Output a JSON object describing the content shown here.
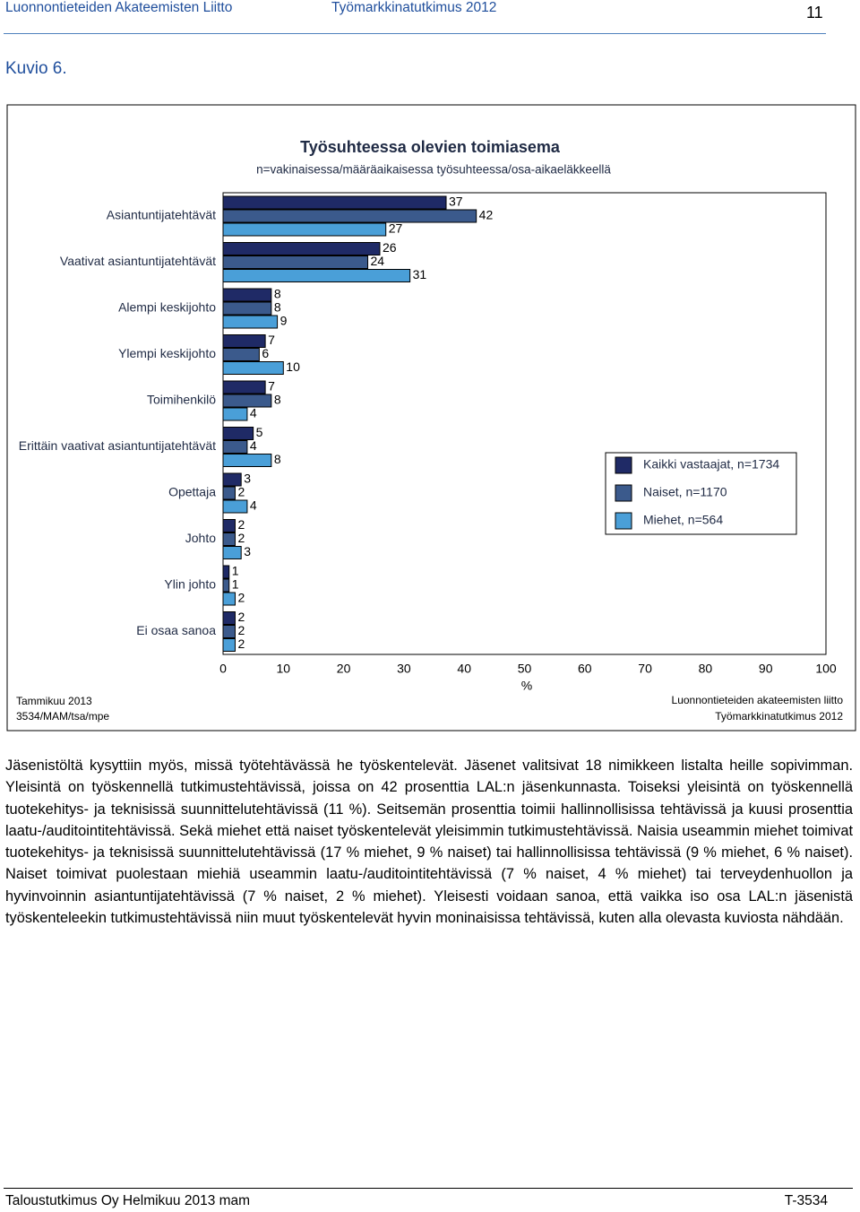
{
  "header": {
    "org": "Luonnontieteiden Akateemisten Liitto",
    "study": "Työmarkkinatutkimus 2012",
    "page": "11"
  },
  "figure_label": "Kuvio 6.",
  "chart_data": {
    "type": "bar",
    "orientation": "horizontal",
    "title": "Työsuhteessa olevien toimiasema",
    "subtitle": "n=vakinaisessa/määräaikaisessa työsuhteessa/osa-aikaeläkkeellä",
    "x_label": "%",
    "categories": [
      "Asiantuntijatehtävät",
      "Vaativat asiantuntijatehtävät",
      "Alempi keskijohto",
      "Ylempi keskijohto",
      "Toimihenkilö",
      "Erittäin vaativat asiantuntijatehtävät",
      "Opettaja",
      "Johto",
      "Ylin johto",
      "Ei osaa sanoa"
    ],
    "series": [
      {
        "name": "Kaikki vastaajat, n=1734",
        "color": "#1f2a66",
        "values": [
          37,
          26,
          8,
          7,
          7,
          5,
          3,
          2,
          1,
          2
        ]
      },
      {
        "name": "Naiset, n=1170",
        "color": "#3b5a8c",
        "values": [
          42,
          24,
          8,
          6,
          8,
          4,
          2,
          2,
          1,
          2
        ]
      },
      {
        "name": "Miehet, n=564",
        "color": "#4a9fd8",
        "values": [
          27,
          31,
          9,
          10,
          4,
          8,
          4,
          3,
          2,
          2
        ]
      }
    ],
    "xlim": [
      0,
      100
    ],
    "xticks": [
      0,
      10,
      20,
      30,
      40,
      50,
      60,
      70,
      80,
      90,
      100
    ],
    "legend": "right",
    "notes_left": [
      "Tammikuu 2013",
      "3534/MAM/tsa/mpe"
    ],
    "notes_right": [
      "Luonnontieteiden akateemisten liitto",
      "Työmarkkinatutkimus 2012"
    ]
  },
  "body": "Jäsenistöltä kysyttiin myös, missä työtehtävässä he työskentelevät. Jäsenet valitsivat 18 nimikkeen listalta heille sopivimman. Yleisintä on työskennellä tutkimustehtävissä, joissa on 42 prosenttia LAL:n jäsenkunnasta. Toiseksi yleisintä on työskennellä tuotekehitys- ja teknisissä suunnittelutehtävissä (11 %). Seitsemän prosenttia toimii hallinnollisissa tehtävissä ja kuusi prosenttia laatu-/auditointitehtävissä. Sekä miehet että naiset työskentelevät yleisimmin tutkimustehtävissä. Naisia useammin miehet toimivat tuotekehitys- ja teknisissä suunnittelutehtävissä (17 % miehet, 9 % naiset) tai hallinnollisissa tehtävissä (9 % miehet, 6 % naiset). Naiset toimivat puolestaan miehiä useammin laatu-/auditointitehtävissä (7 % naiset, 4 % miehet) tai terveydenhuollon ja hyvinvoinnin asiantuntijatehtävissä (7 % naiset, 2 % miehet). Yleisesti voidaan sanoa, että vaikka iso osa LAL:n jäsenistä työskenteleekin tutkimustehtävissä niin muut työskentelevät hyvin moninaisissa tehtävissä, kuten alla olevasta kuviosta nähdään.",
  "footer": {
    "left": "Taloustutkimus Oy Helmikuu 2013 mam",
    "right": "T-3534"
  }
}
